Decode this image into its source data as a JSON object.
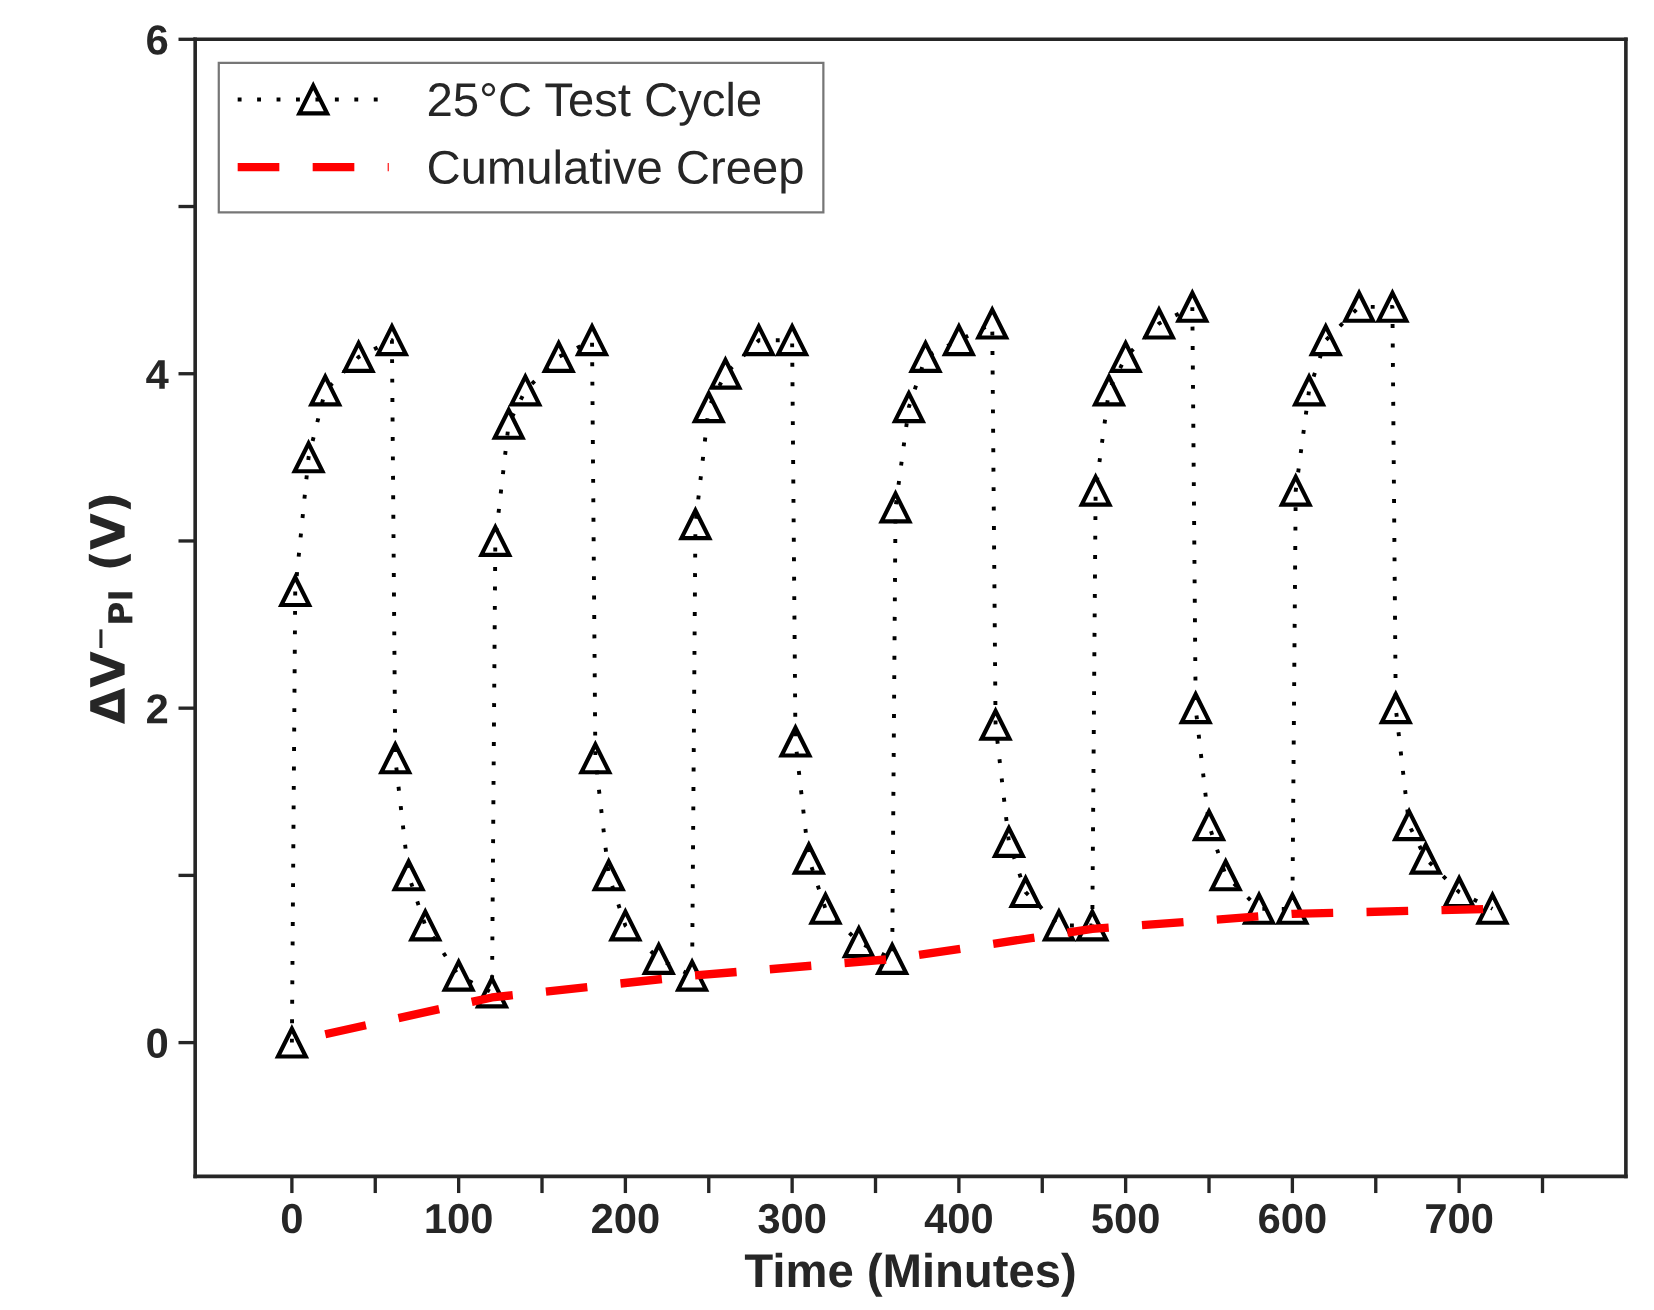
{
  "chart_data": {
    "type": "line",
    "xlabel": "Time (Minutes)",
    "ylabel": "ΔV⁻$_{PI}$ (V)",
    "xlim": [
      -58,
      800
    ],
    "xticks": [
      0,
      {
        "value": 50,
        "label": null
      },
      100,
      {
        "value": 150,
        "label": null
      },
      200,
      {
        "value": 250,
        "label": null
      },
      300,
      {
        "value": 350,
        "label": null
      },
      400,
      {
        "value": 450,
        "label": null
      },
      500,
      {
        "value": 550,
        "label": null
      },
      600,
      {
        "value": 650,
        "label": null
      },
      700,
      {
        "value": 750,
        "label": null
      }
    ],
    "ylim": [
      -0.8,
      6
    ],
    "yticks": [
      0,
      {
        "value": 1,
        "label": null
      },
      2,
      {
        "value": 3,
        "label": null
      },
      4,
      {
        "value": 5,
        "label": null
      },
      6
    ],
    "grid": false,
    "legend": "top left",
    "series": [
      {
        "name": "25°C Test Cycle",
        "color": "#000000",
        "marker": "triangle",
        "line_style": "dotted",
        "x": [
          0,
          2,
          10,
          20,
          40,
          60,
          62,
          70,
          80,
          100,
          120,
          122,
          130,
          140,
          160,
          180,
          182,
          190,
          200,
          220,
          240,
          242,
          250,
          260,
          280,
          300,
          302,
          310,
          320,
          340,
          360,
          362,
          370,
          380,
          400,
          420,
          422,
          430,
          440,
          460,
          480,
          482,
          490,
          500,
          520,
          540,
          542,
          550,
          560,
          580,
          600,
          602,
          610,
          620,
          640,
          660,
          662,
          670,
          680,
          700,
          720
        ],
        "values": [
          0,
          2.7,
          3.5,
          3.9,
          4.1,
          4.2,
          1.7,
          1.0,
          0.7,
          0.4,
          0.3,
          3.0,
          3.7,
          3.9,
          4.1,
          4.2,
          1.7,
          1.0,
          0.7,
          0.5,
          0.4,
          3.1,
          3.8,
          4.0,
          4.2,
          4.2,
          1.8,
          1.1,
          0.8,
          0.6,
          0.5,
          3.2,
          3.8,
          4.1,
          4.2,
          4.3,
          1.9,
          1.2,
          0.9,
          0.7,
          0.7,
          3.3,
          3.9,
          4.1,
          4.3,
          4.4,
          2.0,
          1.3,
          1.0,
          0.8,
          0.8,
          3.3,
          3.9,
          4.2,
          4.4,
          4.4,
          2.0,
          1.3,
          1.1,
          0.9,
          0.8
        ]
      },
      {
        "name": "Cumulative Creep",
        "color": "#ff0000",
        "marker": "none",
        "line_style": "dashed",
        "x": [
          20,
          120,
          240,
          360,
          480,
          600,
          720
        ],
        "values": [
          0.05,
          0.27,
          0.4,
          0.5,
          0.68,
          0.77,
          0.8
        ]
      }
    ]
  }
}
